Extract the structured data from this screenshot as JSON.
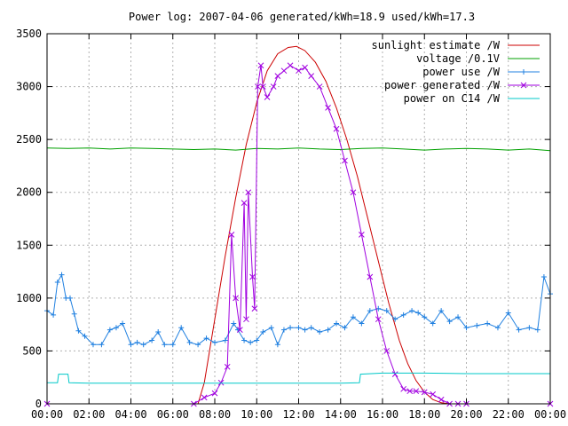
{
  "chart_data": {
    "type": "line",
    "title": "Power log: 2007-04-06 generated/kWh=18.9 used/kWh=17.3",
    "xlabel": "",
    "ylabel": "",
    "x_ticks": [
      "00:00",
      "02:00",
      "04:00",
      "06:00",
      "08:00",
      "10:00",
      "12:00",
      "14:00",
      "16:00",
      "18:00",
      "20:00",
      "22:00",
      "00:00"
    ],
    "y_ticks": [
      "0",
      "500",
      "1000",
      "1500",
      "2000",
      "2500",
      "3000",
      "3500"
    ],
    "xlim_hours": [
      0,
      24
    ],
    "ylim": [
      0,
      3500
    ],
    "grid": true,
    "legend_position": "top-right",
    "series": [
      {
        "name": "sunlight estimate /W",
        "color": "#cc0000",
        "marker": "none",
        "x": [
          0,
          7.2,
          7.5,
          8,
          8.5,
          9,
          9.5,
          10,
          10.5,
          11,
          11.5,
          11.9,
          12.3,
          12.8,
          13.3,
          13.8,
          14.3,
          14.8,
          15.3,
          15.8,
          16.3,
          16.8,
          17.2,
          17.6,
          18,
          18.4,
          18.8,
          19.2,
          19.6,
          20,
          24
        ],
        "y": [
          0,
          0,
          200,
          800,
          1400,
          1950,
          2450,
          2850,
          3150,
          3310,
          3370,
          3380,
          3340,
          3230,
          3050,
          2800,
          2500,
          2150,
          1750,
          1350,
          950,
          600,
          380,
          220,
          110,
          40,
          10,
          0,
          0,
          0,
          0
        ]
      },
      {
        "name": "voltage /0.1V",
        "color": "#00a000",
        "marker": "none",
        "x": [
          0,
          1,
          2,
          3,
          4,
          5,
          6,
          7,
          8,
          9,
          10,
          11,
          12,
          13,
          14,
          15,
          16,
          17,
          18,
          19,
          20,
          21,
          22,
          23,
          24
        ],
        "y": [
          2420,
          2415,
          2420,
          2410,
          2420,
          2415,
          2410,
          2405,
          2410,
          2400,
          2415,
          2410,
          2420,
          2410,
          2405,
          2415,
          2420,
          2410,
          2400,
          2410,
          2415,
          2410,
          2400,
          2410,
          2395
        ]
      },
      {
        "name": "power use /W",
        "color": "#2080e0",
        "marker": "plus",
        "x": [
          0,
          0.3,
          0.5,
          0.7,
          0.9,
          1.1,
          1.3,
          1.5,
          1.8,
          2.2,
          2.6,
          3,
          3.3,
          3.6,
          4,
          4.3,
          4.6,
          5,
          5.3,
          5.6,
          6,
          6.4,
          6.8,
          7.2,
          7.6,
          8,
          8.5,
          8.9,
          9.1,
          9.4,
          9.7,
          10,
          10.3,
          10.7,
          11,
          11.3,
          11.6,
          12,
          12.3,
          12.6,
          13,
          13.4,
          13.8,
          14.2,
          14.6,
          15,
          15.4,
          15.8,
          16.2,
          16.6,
          17,
          17.4,
          17.7,
          18,
          18.4,
          18.8,
          19.2,
          19.6,
          20,
          20.5,
          21,
          21.5,
          22,
          22.5,
          23,
          23.4,
          23.7,
          24
        ],
        "y": [
          880,
          840,
          1150,
          1220,
          1000,
          1000,
          850,
          690,
          640,
          560,
          560,
          700,
          720,
          760,
          560,
          580,
          560,
          600,
          680,
          560,
          560,
          720,
          580,
          560,
          620,
          580,
          600,
          760,
          700,
          600,
          580,
          600,
          680,
          720,
          560,
          700,
          720,
          720,
          700,
          720,
          680,
          700,
          760,
          720,
          820,
          760,
          880,
          900,
          880,
          800,
          840,
          880,
          860,
          820,
          760,
          880,
          780,
          820,
          720,
          740,
          760,
          720,
          860,
          700,
          720,
          700,
          1200,
          1040
        ]
      },
      {
        "name": "power generated /W",
        "color": "#a000e0",
        "marker": "cross",
        "x": [
          0,
          7,
          7.5,
          8,
          8.3,
          8.6,
          8.8,
          9,
          9.2,
          9.4,
          9.5,
          9.6,
          9.8,
          9.9,
          10.05,
          10.2,
          10.3,
          10.5,
          10.8,
          11,
          11.3,
          11.6,
          12,
          12.3,
          12.6,
          13,
          13.4,
          13.8,
          14.2,
          14.6,
          15,
          15.4,
          15.8,
          16.2,
          16.6,
          17,
          17.3,
          17.6,
          18,
          18.4,
          18.8,
          19.2,
          19.6,
          20,
          24
        ],
        "y": [
          0,
          0,
          60,
          100,
          200,
          350,
          1600,
          1000,
          700,
          1900,
          800,
          2000,
          1200,
          900,
          3000,
          3200,
          3000,
          2900,
          3000,
          3100,
          3150,
          3200,
          3150,
          3180,
          3100,
          3000,
          2800,
          2600,
          2300,
          2000,
          1600,
          1200,
          800,
          500,
          280,
          140,
          120,
          120,
          110,
          90,
          40,
          0,
          0,
          0,
          0
        ]
      },
      {
        "name": "power on C14 /W",
        "color": "#00c8c8",
        "marker": "none",
        "x": [
          0,
          0.5,
          0.55,
          1,
          1.05,
          2,
          4,
          6,
          8,
          10,
          12,
          14,
          14.9,
          14.95,
          16,
          18,
          20,
          22,
          24
        ],
        "y": [
          200,
          200,
          280,
          280,
          200,
          195,
          195,
          195,
          195,
          195,
          195,
          195,
          200,
          280,
          290,
          290,
          285,
          285,
          285
        ]
      }
    ]
  }
}
